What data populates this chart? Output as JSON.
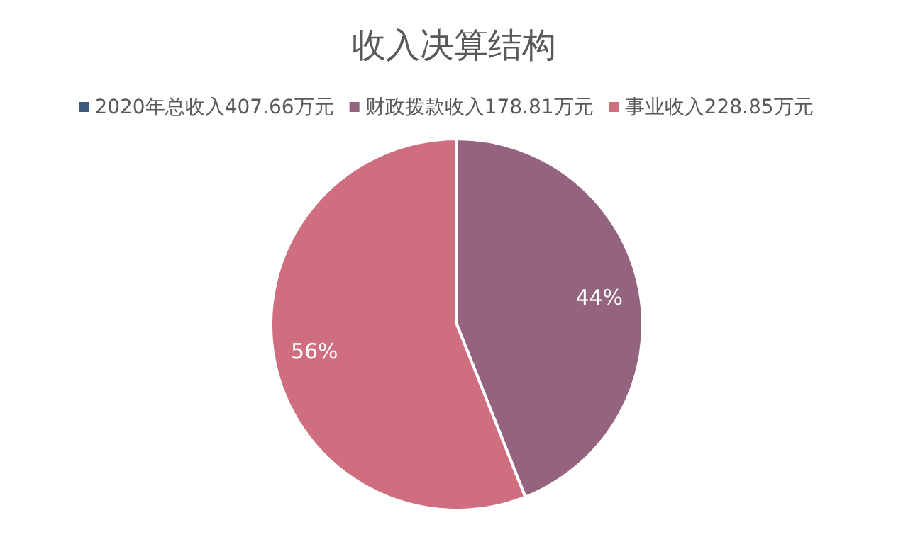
{
  "chart_data": {
    "type": "pie",
    "title": "收入决算结构",
    "legend": "top",
    "categories": [
      "2020年总收入407.66万元",
      "财政拨款收入178.81万元",
      "事业收入228.85万元"
    ],
    "values": [
      0,
      44,
      56
    ],
    "colors": [
      "#3e5a7e",
      "#94637e",
      "#cf6e7e"
    ],
    "value_labels": [
      null,
      "44%",
      "56%"
    ]
  }
}
